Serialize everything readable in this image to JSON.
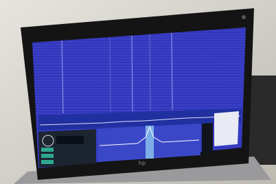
{
  "logo": "hp"
}
